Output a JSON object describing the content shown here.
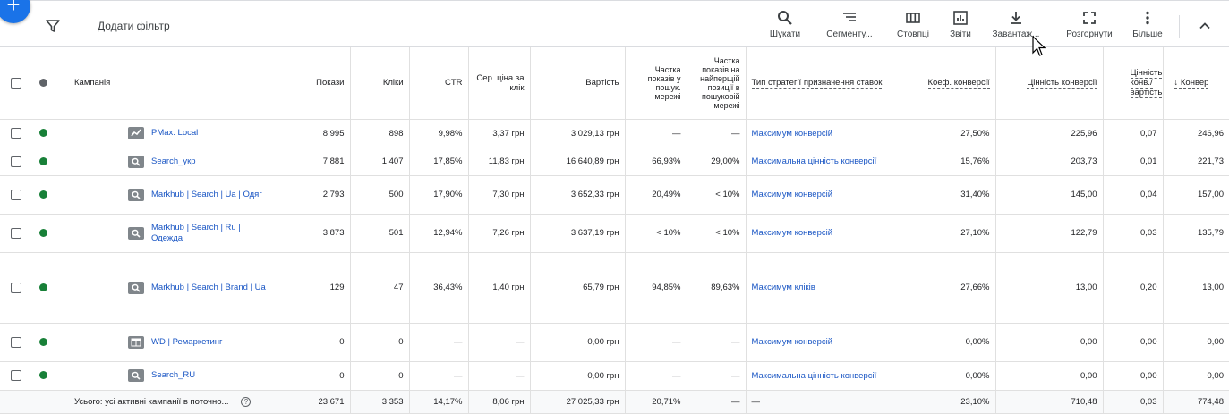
{
  "toolbar": {
    "add_filter": "Додати фільтр",
    "buttons": [
      {
        "label": "Шукати",
        "icon": "search-icon"
      },
      {
        "label": "Сегменту...",
        "icon": "segment-icon"
      },
      {
        "label": "Стовпці",
        "icon": "columns-icon"
      },
      {
        "label": "Звіти",
        "icon": "reports-icon"
      },
      {
        "label": "Завантаж...",
        "icon": "download-icon"
      },
      {
        "label": "Розгорнути",
        "icon": "expand-icon"
      },
      {
        "label": "Більше",
        "icon": "more-vert-icon"
      }
    ]
  },
  "table": {
    "headers": {
      "campaign": "Кампанія",
      "impressions": "Покази",
      "clicks": "Кліки",
      "ctr": "CTR",
      "avg_cpc": "Сер. ціна за клік",
      "cost": "Вартість",
      "search_is": "Частка показів у пошук. мережі",
      "search_top_is": "Частка показів на найперщій позиції в пошуковій мережі",
      "bid_strategy": "Тип стратегії призначення ставок",
      "conv_rate": "Коеф. конверсії",
      "conv_value": "Цінність конверсії",
      "value_cost": "Цінність конв./ вартість",
      "conversions": "↓ Конвер"
    },
    "rows": [
      {
        "type": "pmax",
        "name": "PMax: Local",
        "impressions": "8 995",
        "clicks": "898",
        "ctr": "9,98%",
        "avg_cpc": "3,37 грн",
        "cost": "3 029,13 грн",
        "search_is": "—",
        "search_top_is": "—",
        "bid_strategy": "Максимум конверсій",
        "conv_rate": "27,50%",
        "conv_value": "225,96",
        "value_cost": "0,07",
        "conversions": "246,96"
      },
      {
        "type": "search",
        "name": "Search_укр",
        "impressions": "7 881",
        "clicks": "1 407",
        "ctr": "17,85%",
        "avg_cpc": "11,83 грн",
        "cost": "16 640,89 грн",
        "search_is": "66,93%",
        "search_top_is": "29,00%",
        "bid_strategy": "Максимальна цінність конверсії",
        "conv_rate": "15,76%",
        "conv_value": "203,73",
        "value_cost": "0,01",
        "conversions": "221,73"
      },
      {
        "type": "search",
        "name": "Markhub | Search | Ua | Одяг",
        "impressions": "2 793",
        "clicks": "500",
        "ctr": "17,90%",
        "avg_cpc": "7,30 грн",
        "cost": "3 652,33 грн",
        "search_is": "20,49%",
        "search_top_is": "< 10%",
        "bid_strategy": "Максимум конверсій",
        "conv_rate": "31,40%",
        "conv_value": "145,00",
        "value_cost": "0,04",
        "conversions": "157,00"
      },
      {
        "type": "search",
        "name": "Markhub | Search | Ru | Одежда",
        "impressions": "3 873",
        "clicks": "501",
        "ctr": "12,94%",
        "avg_cpc": "7,26 грн",
        "cost": "3 637,19 грн",
        "search_is": "< 10%",
        "search_top_is": "< 10%",
        "bid_strategy": "Максимум конверсій",
        "conv_rate": "27,10%",
        "conv_value": "122,79",
        "value_cost": "0,03",
        "conversions": "135,79"
      },
      {
        "type": "search",
        "name": "Markhub | Search | Brand | Ua",
        "impressions": "129",
        "clicks": "47",
        "ctr": "36,43%",
        "avg_cpc": "1,40 грн",
        "cost": "65,79 грн",
        "search_is": "94,85%",
        "search_top_is": "89,63%",
        "bid_strategy": "Максимум кліків",
        "conv_rate": "27,66%",
        "conv_value": "13,00",
        "value_cost": "0,20",
        "conversions": "13,00"
      },
      {
        "type": "display",
        "name": "WD | Ремаркетинг",
        "impressions": "0",
        "clicks": "0",
        "ctr": "—",
        "avg_cpc": "—",
        "cost": "0,00 грн",
        "search_is": "—",
        "search_top_is": "—",
        "bid_strategy": "Максимум конверсій",
        "conv_rate": "0,00%",
        "conv_value": "0,00",
        "value_cost": "0,00",
        "conversions": "0,00"
      },
      {
        "type": "search",
        "name": "Search_RU",
        "impressions": "0",
        "clicks": "0",
        "ctr": "—",
        "avg_cpc": "—",
        "cost": "0,00 грн",
        "search_is": "—",
        "search_top_is": "—",
        "bid_strategy": "Максимальна цінність конверсії",
        "conv_rate": "0,00%",
        "conv_value": "0,00",
        "value_cost": "0,00",
        "conversions": "0,00"
      }
    ],
    "total": {
      "label": "Усього: усі активні кампанії в поточно...",
      "impressions": "23 671",
      "clicks": "3 353",
      "ctr": "14,17%",
      "avg_cpc": "8,06 грн",
      "cost": "27 025,33 грн",
      "search_is": "20,71%",
      "search_top_is": "—",
      "bid_strategy": "—",
      "conv_rate": "23,10%",
      "conv_value": "710,48",
      "value_cost": "0,03",
      "conversions": "774,48"
    }
  },
  "colors": {
    "accent": "#1a73e8",
    "status_enabled": "#188038",
    "link": "#1a56c4"
  }
}
